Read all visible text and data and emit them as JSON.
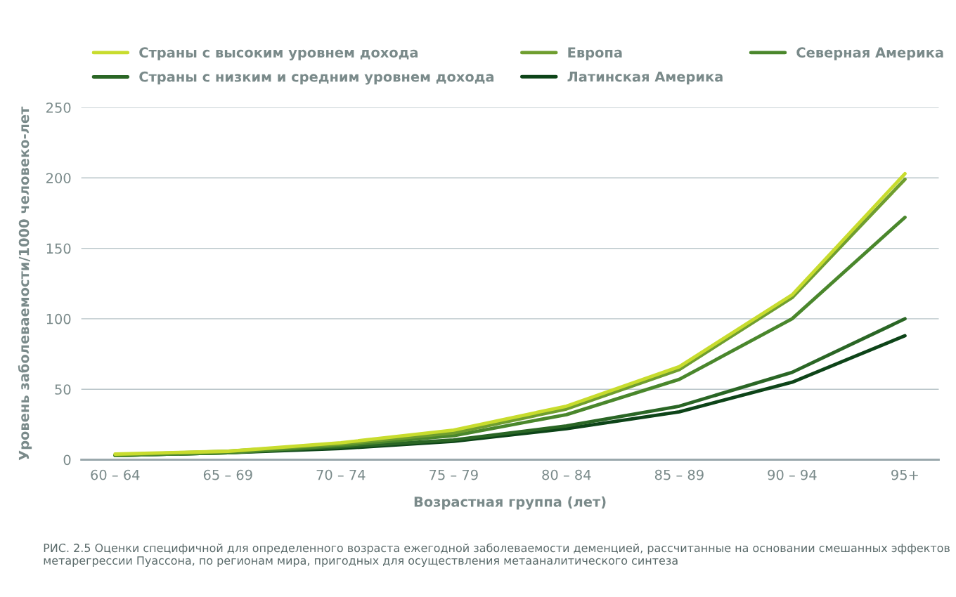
{
  "chart_data": {
    "type": "line",
    "xlabel": "Возрастная группа (лет)",
    "ylabel": "Уровень заболеваемости/1000 человеко-лет",
    "categories": [
      "60 – 64",
      "65 – 69",
      "70 – 74",
      "75 – 79",
      "80 – 84",
      "85 – 89",
      "90 – 94",
      "95+"
    ],
    "series": [
      {
        "name": "Страны с высоким уровнем дохода",
        "color": "#c8dc2e",
        "values": [
          4,
          6,
          12,
          21,
          38,
          66,
          117,
          203
        ]
      },
      {
        "name": "Европа",
        "color": "#6f9e2f",
        "values": [
          3.5,
          6,
          11,
          19,
          36,
          64,
          115,
          199
        ]
      },
      {
        "name": "Северная Америка",
        "color": "#4a872c",
        "values": [
          3,
          5,
          10,
          17,
          32,
          57,
          100,
          172
        ]
      },
      {
        "name": "Страны с низким и средним уровнем дохода",
        "color": "#2a6625",
        "values": [
          3,
          5,
          9,
          14,
          24,
          38,
          62,
          100
        ]
      },
      {
        "name": "Латинская Америка",
        "color": "#0d4418",
        "values": [
          3,
          5,
          8,
          13,
          22,
          34,
          55,
          88
        ]
      }
    ],
    "ylim": [
      0,
      250
    ],
    "yticks": [
      0,
      50,
      100,
      150,
      200,
      250
    ],
    "grid": "y",
    "legend": "top left",
    "line_style": "solid",
    "marker": "none",
    "annotations": [
      "РИС. 2.5 Оценки специфичной для определенного возраста ежегодной заболеваемости деменцией, рассчитанные на основании смешанных эффектов метарегрессии Пуассона, по регионам мира, пригодных для осуществления метааналитического синтеза"
    ]
  }
}
